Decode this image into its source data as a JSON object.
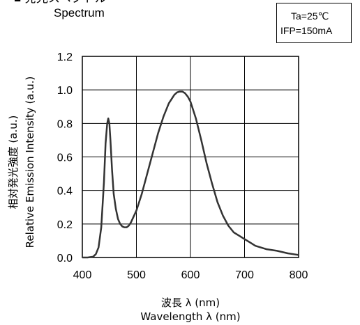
{
  "header": {
    "title_ja": "■ 発光スペクトル",
    "title_en": "Spectrum"
  },
  "conditions": {
    "line1": "Ta=25℃",
    "line2": "IFP=150mA"
  },
  "chart_data": {
    "type": "line",
    "xlabel_ja": "波長 λ (nm)",
    "xlabel_en": "Wavelength λ (nm)",
    "ylabel_ja": "相対発光強度 (a.u.)",
    "ylabel_en": "Relative Emission Intensity (a.u.)",
    "xlim": [
      400,
      800
    ],
    "ylim": [
      0,
      1.2
    ],
    "xticks": [
      "400",
      "500",
      "600",
      "700",
      "800"
    ],
    "yticks": [
      "0.0",
      "0.2",
      "0.4",
      "0.6",
      "0.8",
      "1.0",
      "1.2"
    ],
    "grid": true,
    "line_color": "#333333",
    "series": [
      {
        "x": [
          400,
          410,
          420,
          425,
          430,
          435,
          440,
          443,
          446,
          448,
          450,
          452,
          455,
          458,
          462,
          466,
          470,
          474,
          478,
          482,
          486,
          490,
          500,
          510,
          520,
          530,
          540,
          550,
          560,
          570,
          575,
          580,
          585,
          590,
          595,
          600,
          610,
          620,
          630,
          640,
          650,
          660,
          670,
          680,
          690,
          700,
          710,
          720,
          740,
          760,
          780,
          790,
          800
        ],
        "y": [
          0,
          0,
          0.005,
          0.02,
          0.06,
          0.18,
          0.45,
          0.68,
          0.8,
          0.83,
          0.8,
          0.7,
          0.52,
          0.38,
          0.29,
          0.23,
          0.2,
          0.185,
          0.18,
          0.18,
          0.19,
          0.21,
          0.28,
          0.38,
          0.5,
          0.62,
          0.74,
          0.84,
          0.92,
          0.97,
          0.985,
          0.99,
          0.99,
          0.98,
          0.96,
          0.93,
          0.83,
          0.7,
          0.56,
          0.44,
          0.33,
          0.25,
          0.19,
          0.15,
          0.13,
          0.11,
          0.09,
          0.07,
          0.05,
          0.04,
          0.025,
          0.02,
          0.015
        ]
      }
    ]
  }
}
